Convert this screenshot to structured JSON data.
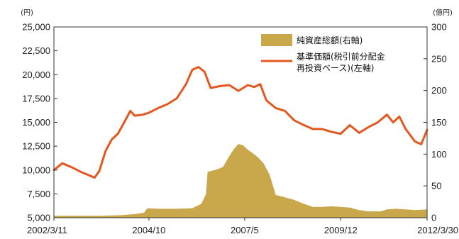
{
  "chart_data": {
    "type": "line",
    "left_unit": "(円)",
    "right_unit": "(億円)",
    "x_tick_labels": [
      "2002/3/11",
      "2004/10",
      "2007/5",
      "2009/12",
      "2012/3/30"
    ],
    "x_ticks": [
      "2002-03-11",
      "2004-10-01",
      "2007-05-01",
      "2009-12-01",
      "2012-03-30"
    ],
    "xlim": [
      "2002-03-11",
      "2012-03-30"
    ],
    "y_left": {
      "lim": [
        5000,
        25000
      ],
      "tick_labels": [
        "5,000",
        "7,500",
        "10,000",
        "12,500",
        "15,000",
        "17,500",
        "20,000",
        "22,500",
        "25,000"
      ],
      "ticks": [
        5000,
        7500,
        10000,
        12500,
        15000,
        17500,
        20000,
        22500,
        25000
      ]
    },
    "y_right": {
      "lim": [
        0,
        300
      ],
      "tick_labels": [
        "0",
        "50",
        "100",
        "150",
        "200",
        "250",
        "300"
      ],
      "ticks": [
        0,
        50,
        100,
        150,
        200,
        250,
        300
      ]
    },
    "legend_position": "top-right",
    "legend": [
      {
        "lines": [
          "純資産総額(右軸)"
        ],
        "kind": "area"
      },
      {
        "lines": [
          "基準価額(税引前分配金",
          "再投資ベース)(左軸)"
        ],
        "kind": "line"
      }
    ],
    "colors": {
      "area": "#c9a84c",
      "line": "#e2581e",
      "axis": "#333333"
    },
    "series": [
      {
        "name": "純資産総額(右軸)",
        "axis": "right",
        "kind": "area",
        "points": [
          [
            "2002-03-11",
            3
          ],
          [
            "2003-06-01",
            3
          ],
          [
            "2004-01-01",
            4
          ],
          [
            "2004-06-01",
            6
          ],
          [
            "2004-08-15",
            8
          ],
          [
            "2004-09-15",
            15
          ],
          [
            "2005-01-01",
            14
          ],
          [
            "2005-07-01",
            14
          ],
          [
            "2005-12-01",
            15
          ],
          [
            "2006-03-01",
            22
          ],
          [
            "2006-04-15",
            37
          ],
          [
            "2006-05-01",
            72
          ],
          [
            "2006-08-01",
            76
          ],
          [
            "2006-10-01",
            80
          ],
          [
            "2006-12-01",
            97
          ],
          [
            "2007-01-15",
            108
          ],
          [
            "2007-03-01",
            116
          ],
          [
            "2007-04-15",
            114
          ],
          [
            "2007-06-01",
            107
          ],
          [
            "2007-07-15",
            102
          ],
          [
            "2007-09-01",
            96
          ],
          [
            "2007-11-01",
            86
          ],
          [
            "2008-01-01",
            68
          ],
          [
            "2008-03-01",
            36
          ],
          [
            "2008-06-01",
            32
          ],
          [
            "2008-09-01",
            28
          ],
          [
            "2008-12-01",
            22
          ],
          [
            "2009-03-01",
            17
          ],
          [
            "2009-06-01",
            17
          ],
          [
            "2009-09-01",
            18
          ],
          [
            "2009-12-01",
            17
          ],
          [
            "2010-03-01",
            16
          ],
          [
            "2010-06-01",
            12
          ],
          [
            "2010-09-01",
            10
          ],
          [
            "2011-01-01",
            10
          ],
          [
            "2011-03-01",
            13
          ],
          [
            "2011-06-01",
            14
          ],
          [
            "2011-09-01",
            13
          ],
          [
            "2011-12-01",
            12
          ],
          [
            "2012-03-30",
            13
          ]
        ]
      },
      {
        "name": "基準価額(税引前分配金再投資ベース)(左軸)",
        "axis": "left",
        "kind": "line",
        "points": [
          [
            "2002-03-11",
            10000
          ],
          [
            "2002-06-01",
            10700
          ],
          [
            "2002-09-01",
            10300
          ],
          [
            "2002-12-01",
            9800
          ],
          [
            "2003-03-01",
            9400
          ],
          [
            "2003-04-15",
            9200
          ],
          [
            "2003-06-01",
            9900
          ],
          [
            "2003-08-01",
            12000
          ],
          [
            "2003-10-01",
            13200
          ],
          [
            "2003-12-01",
            13800
          ],
          [
            "2004-02-01",
            15000
          ],
          [
            "2004-04-01",
            16200
          ],
          [
            "2004-05-15",
            15700
          ],
          [
            "2004-08-01",
            15800
          ],
          [
            "2004-10-01",
            16000
          ],
          [
            "2005-01-01",
            16500
          ],
          [
            "2005-04-01",
            16900
          ],
          [
            "2005-07-01",
            17500
          ],
          [
            "2005-10-01",
            19000
          ],
          [
            "2005-12-01",
            20500
          ],
          [
            "2006-02-01",
            20800
          ],
          [
            "2006-04-01",
            20300
          ],
          [
            "2006-06-01",
            18600
          ],
          [
            "2006-09-01",
            18800
          ],
          [
            "2006-12-01",
            18900
          ],
          [
            "2007-03-01",
            18300
          ],
          [
            "2007-06-01",
            18900
          ],
          [
            "2007-08-01",
            18700
          ],
          [
            "2007-10-01",
            19000
          ],
          [
            "2007-12-01",
            17300
          ],
          [
            "2008-03-01",
            16500
          ],
          [
            "2008-06-01",
            16200
          ],
          [
            "2008-09-01",
            15200
          ],
          [
            "2008-11-15",
            14800
          ],
          [
            "2009-03-01",
            14300
          ],
          [
            "2009-06-01",
            14300
          ],
          [
            "2009-09-01",
            14000
          ],
          [
            "2009-12-01",
            13800
          ],
          [
            "2010-03-01",
            14700
          ],
          [
            "2010-06-01",
            13900
          ],
          [
            "2010-09-01",
            14500
          ],
          [
            "2010-12-01",
            15000
          ],
          [
            "2011-03-01",
            15800
          ],
          [
            "2011-05-01",
            15000
          ],
          [
            "2011-07-01",
            15600
          ],
          [
            "2011-09-01",
            14300
          ],
          [
            "2011-12-01",
            13000
          ],
          [
            "2012-02-01",
            12700
          ],
          [
            "2012-03-30",
            14200
          ]
        ]
      }
    ]
  }
}
